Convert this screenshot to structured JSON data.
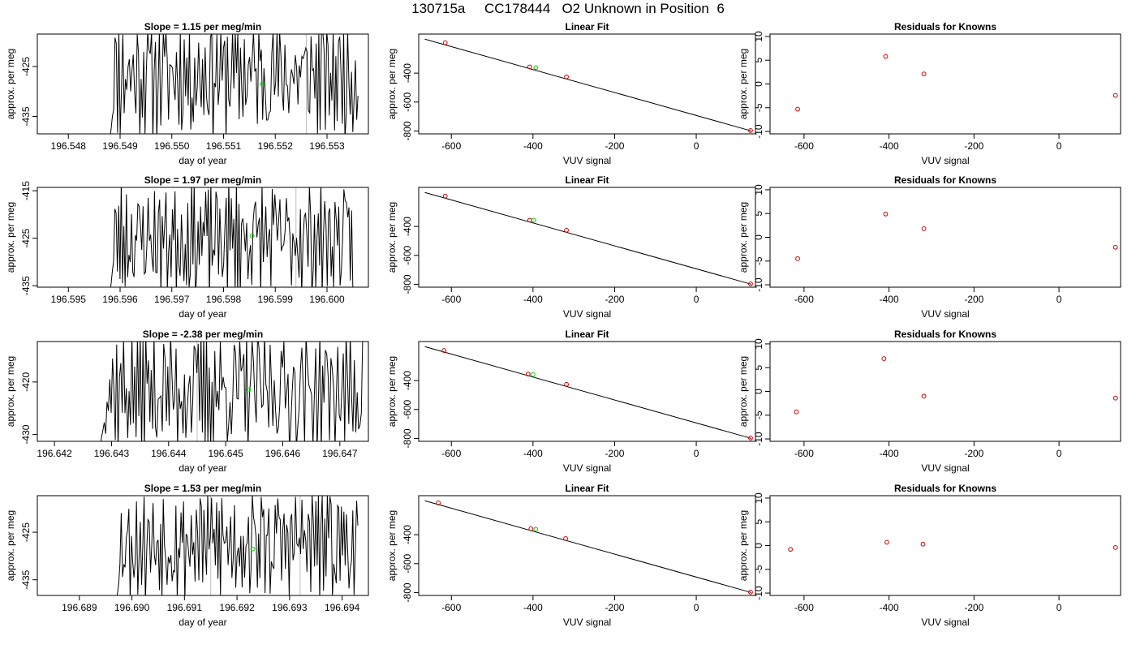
{
  "figure": {
    "title": "130715a     CC178444   O2 Unknown in Position  6"
  },
  "colors": {
    "line": "#000000",
    "known_point": "#cc0000",
    "unknown_point": "#00cc00",
    "marker_line": "#bfbfbf"
  },
  "chart_data": [
    {
      "type": "line",
      "row": 0,
      "col": 0,
      "title": "Slope =  1.15  per meg/min",
      "xlabel": "day of year",
      "ylabel": "approx. per meg",
      "xlim": [
        196.5474,
        196.5538
      ],
      "ylim": [
        -438.5,
        -418.5
      ],
      "xticks": [
        "196.548",
        "196.549",
        "196.550",
        "196.551",
        "196.552",
        "196.553"
      ],
      "xtick_values": [
        196.548,
        196.549,
        196.55,
        196.551,
        196.552,
        196.553
      ],
      "yticks": [
        "-435",
        "-425"
      ],
      "ytick_values": [
        -435,
        -425
      ],
      "trace_start": 196.5488,
      "trace_end": 196.5536,
      "trace_min": -440,
      "trace_max": -418,
      "trace_base": -426.5,
      "trace_amp": 7.5,
      "seed": 11,
      "marker_x": [
        196.5508,
        196.5526
      ],
      "unknown_point": {
        "x": 196.55175,
        "y": -428.5
      }
    },
    {
      "type": "scatter",
      "row": 0,
      "col": 1,
      "title": "Linear Fit",
      "xlabel": "VUV signal",
      "ylabel": "approx. per meg",
      "xlim": [
        -680,
        145
      ],
      "ylim": [
        -820,
        -130
      ],
      "xticks": [
        "-600",
        "-400",
        "-200",
        "0"
      ],
      "xtick_values": [
        -600,
        -400,
        -200,
        0
      ],
      "yticks": [
        "-800",
        "-600",
        "-400"
      ],
      "ytick_values": [
        -800,
        -600,
        -400
      ],
      "fit_line": {
        "x": [
          -665,
          135
        ],
        "y": [
          -165,
          -800
        ]
      },
      "known_points": [
        {
          "x": -615,
          "y": -190
        },
        {
          "x": -408,
          "y": -357
        },
        {
          "x": -318,
          "y": -426
        },
        {
          "x": 133,
          "y": -797
        }
      ],
      "unknown_points": [
        {
          "x": -393,
          "y": -362
        }
      ]
    },
    {
      "type": "scatter",
      "row": 0,
      "col": 2,
      "title": "Residuals for Knowns",
      "xlabel": "VUV signal",
      "ylabel": "approx. per meg",
      "xlim": [
        -680,
        145
      ],
      "ylim": [
        -10.5,
        10.5
      ],
      "xticks": [
        "-600",
        "-400",
        "-200",
        "0"
      ],
      "xtick_values": [
        -600,
        -400,
        -200,
        0
      ],
      "yticks": [
        "-10",
        "-5",
        "0",
        "5",
        "10"
      ],
      "ytick_values": [
        -10,
        -5,
        0,
        5,
        10
      ],
      "known_points": [
        {
          "x": -615,
          "y": -5.3
        },
        {
          "x": -408,
          "y": 5.8
        },
        {
          "x": -318,
          "y": 2.1
        },
        {
          "x": 133,
          "y": -2.4
        }
      ]
    },
    {
      "type": "line",
      "row": 1,
      "col": 0,
      "title": "Slope =  1.97  per meg/min",
      "xlabel": "day of year",
      "ylabel": "approx. per meg",
      "xlim": [
        196.5944,
        196.6008
      ],
      "ylim": [
        -435.3,
        -414.3
      ],
      "xticks": [
        "196.595",
        "196.596",
        "196.597",
        "196.598",
        "196.599",
        "196.600"
      ],
      "xtick_values": [
        196.595,
        196.596,
        196.597,
        196.598,
        196.599,
        196.6
      ],
      "yticks": [
        "-435",
        "-425",
        "-415"
      ],
      "ytick_values": [
        -435,
        -425,
        -415
      ],
      "trace_start": 196.5958,
      "trace_end": 196.6005,
      "trace_min": -437,
      "trace_max": -413,
      "trace_base": -425,
      "trace_amp": 7.0,
      "seed": 23,
      "marker_x": [
        196.5977,
        196.5994
      ],
      "unknown_point": {
        "x": 196.59855,
        "y": -424.5
      }
    },
    {
      "type": "scatter",
      "row": 1,
      "col": 1,
      "title": "Linear Fit",
      "xlabel": "VUV signal",
      "ylabel": "approx. per meg",
      "xlim": [
        -680,
        145
      ],
      "ylim": [
        -820,
        -130
      ],
      "xticks": [
        "-600",
        "-400",
        "-200",
        "0"
      ],
      "xtick_values": [
        -600,
        -400,
        -200,
        0
      ],
      "yticks": [
        "-800",
        "-600",
        "-400"
      ],
      "ytick_values": [
        -800,
        -600,
        -400
      ],
      "fit_line": {
        "x": [
          -665,
          135
        ],
        "y": [
          -165,
          -800
        ]
      },
      "known_points": [
        {
          "x": -615,
          "y": -190
        },
        {
          "x": -408,
          "y": -357
        },
        {
          "x": -318,
          "y": -426
        },
        {
          "x": 133,
          "y": -797
        }
      ],
      "unknown_points": [
        {
          "x": -398,
          "y": -357
        }
      ]
    },
    {
      "type": "scatter",
      "row": 1,
      "col": 2,
      "title": "Residuals for Knowns",
      "xlabel": "VUV signal",
      "ylabel": "approx. per meg",
      "xlim": [
        -680,
        145
      ],
      "ylim": [
        -10.5,
        10.5
      ],
      "xticks": [
        "-600",
        "-400",
        "-200",
        "0"
      ],
      "xtick_values": [
        -600,
        -400,
        -200,
        0
      ],
      "yticks": [
        "-10",
        "-5",
        "0",
        "5",
        "10"
      ],
      "ytick_values": [
        -10,
        -5,
        0,
        5,
        10
      ],
      "known_points": [
        {
          "x": -615,
          "y": -4.5
        },
        {
          "x": -408,
          "y": 4.9
        },
        {
          "x": -318,
          "y": 1.8
        },
        {
          "x": 133,
          "y": -2.1
        }
      ]
    },
    {
      "type": "line",
      "row": 2,
      "col": 0,
      "title": "Slope =  -2.38  per meg/min",
      "xlabel": "day of year",
      "ylabel": "approx. per meg",
      "xlim": [
        196.6417,
        196.6475
      ],
      "ylim": [
        -431.3,
        -412.3
      ],
      "xticks": [
        "196.642",
        "196.643",
        "196.644",
        "196.645",
        "196.646",
        "196.647"
      ],
      "xtick_values": [
        196.642,
        196.643,
        196.644,
        196.645,
        196.646,
        196.647
      ],
      "yticks": [
        "-430",
        "-420"
      ],
      "ytick_values": [
        -430,
        -420
      ],
      "trace_start": 196.6428,
      "trace_end": 196.6474,
      "trace_min": -433,
      "trace_max": -411,
      "trace_base": -421.5,
      "trace_amp": 7.0,
      "seed": 37,
      "marker_x": [
        196.6445
      ],
      "unknown_point": {
        "x": 196.6454,
        "y": -421.5
      }
    },
    {
      "type": "scatter",
      "row": 2,
      "col": 1,
      "title": "Linear Fit",
      "xlabel": "VUV signal",
      "ylabel": "approx. per meg",
      "xlim": [
        -680,
        145
      ],
      "ylim": [
        -820,
        -130
      ],
      "xticks": [
        "-600",
        "-400",
        "-200",
        "0"
      ],
      "xtick_values": [
        -600,
        -400,
        -200,
        0
      ],
      "yticks": [
        "-800",
        "-600",
        "-400"
      ],
      "ytick_values": [
        -800,
        -600,
        -400
      ],
      "fit_line": {
        "x": [
          -665,
          135
        ],
        "y": [
          -165,
          -800
        ]
      },
      "known_points": [
        {
          "x": -618,
          "y": -192
        },
        {
          "x": -412,
          "y": -355
        },
        {
          "x": -318,
          "y": -426
        },
        {
          "x": 133,
          "y": -797
        }
      ],
      "unknown_points": [
        {
          "x": -400,
          "y": -358
        }
      ]
    },
    {
      "type": "scatter",
      "row": 2,
      "col": 2,
      "title": "Residuals for Knowns",
      "xlabel": "VUV signal",
      "ylabel": "approx. per meg",
      "xlim": [
        -680,
        145
      ],
      "ylim": [
        -10.5,
        10.5
      ],
      "xticks": [
        "-600",
        "-400",
        "-200",
        "0"
      ],
      "xtick_values": [
        -600,
        -400,
        -200,
        0
      ],
      "yticks": [
        "-10",
        "-5",
        "0",
        "5",
        "10"
      ],
      "ytick_values": [
        -10,
        -5,
        0,
        5,
        10
      ],
      "known_points": [
        {
          "x": -618,
          "y": -4.3
        },
        {
          "x": -412,
          "y": 6.9
        },
        {
          "x": -318,
          "y": -1.0
        },
        {
          "x": 133,
          "y": -1.4
        }
      ]
    },
    {
      "type": "line",
      "row": 3,
      "col": 0,
      "title": "Slope =  1.53  per meg/min",
      "xlabel": "day of year",
      "ylabel": "approx. per meg",
      "xlim": [
        196.6882,
        196.6945
      ],
      "ylim": [
        -438.3,
        -417.3
      ],
      "xticks": [
        "196.689",
        "196.690",
        "196.691",
        "196.692",
        "196.693",
        "196.694"
      ],
      "xtick_values": [
        196.689,
        196.69,
        196.691,
        196.692,
        196.693,
        196.694
      ],
      "yticks": [
        "-435",
        "-425"
      ],
      "ytick_values": [
        -435,
        -425
      ],
      "trace_start": 196.6897,
      "trace_end": 196.6943,
      "trace_min": -440,
      "trace_max": -417,
      "trace_base": -427,
      "trace_amp": 7.0,
      "seed": 53,
      "marker_x": [
        196.6915,
        196.6932
      ],
      "unknown_point": {
        "x": 196.6923,
        "y": -428.5
      }
    },
    {
      "type": "scatter",
      "row": 3,
      "col": 1,
      "title": "Linear Fit",
      "xlabel": "VUV signal",
      "ylabel": "approx. per meg",
      "xlim": [
        -680,
        145
      ],
      "ylim": [
        -820,
        -130
      ],
      "xticks": [
        "-600",
        "-400",
        "-200",
        "0"
      ],
      "xtick_values": [
        -600,
        -400,
        -200,
        0
      ],
      "yticks": [
        "-800",
        "-600",
        "-400"
      ],
      "ytick_values": [
        -800,
        -600,
        -400
      ],
      "fit_line": {
        "x": [
          -665,
          135
        ],
        "y": [
          -165,
          -800
        ]
      },
      "known_points": [
        {
          "x": -632,
          "y": -180
        },
        {
          "x": -405,
          "y": -359
        },
        {
          "x": -320,
          "y": -427
        },
        {
          "x": 133,
          "y": -797
        }
      ],
      "unknown_points": [
        {
          "x": -393,
          "y": -362
        }
      ]
    },
    {
      "type": "scatter",
      "row": 3,
      "col": 2,
      "title": "Residuals for Knowns",
      "xlabel": "VUV signal",
      "ylabel": "approx. per meg",
      "xlim": [
        -680,
        145
      ],
      "ylim": [
        -10.5,
        10.5
      ],
      "xticks": [
        "-600",
        "-400",
        "-200",
        "0"
      ],
      "xtick_values": [
        -600,
        -400,
        -200,
        0
      ],
      "yticks": [
        "-10",
        "-5",
        "0",
        "5",
        "10"
      ],
      "ytick_values": [
        -10,
        -5,
        0,
        5,
        10
      ],
      "known_points": [
        {
          "x": -632,
          "y": -0.8
        },
        {
          "x": -405,
          "y": 0.7
        },
        {
          "x": -320,
          "y": 0.3
        },
        {
          "x": 133,
          "y": -0.4
        }
      ]
    }
  ]
}
